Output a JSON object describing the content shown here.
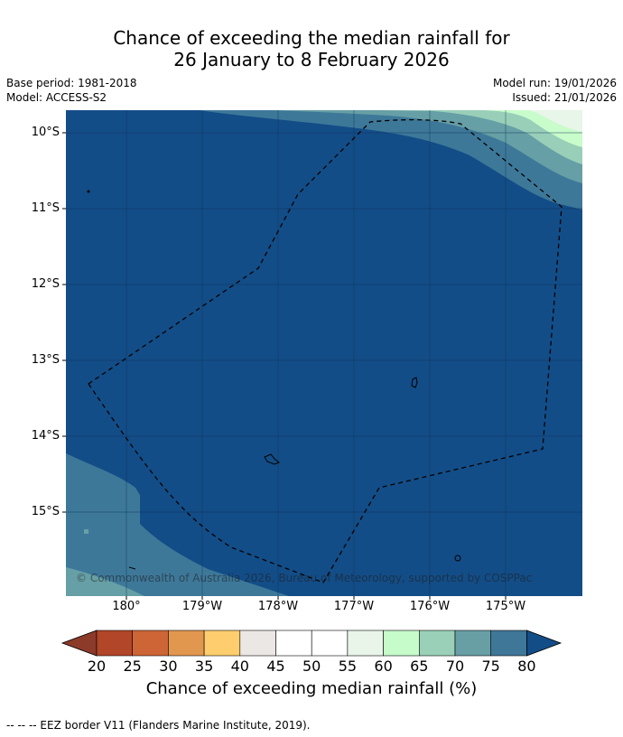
{
  "title": {
    "line1": "Chance of exceeding the median rainfall for",
    "line2": "26 January to 8 February 2026"
  },
  "meta": {
    "base_period": "Base period: 1981-2018",
    "model": "Model: ACCESS-S2",
    "model_run": "Model run: 19/01/2026",
    "issued": "Issued: 21/01/2026"
  },
  "map": {
    "lat_labels": [
      "10°S",
      "11°S",
      "12°S",
      "13°S",
      "14°S",
      "15°S"
    ],
    "lon_labels": [
      "180°",
      "179°W",
      "178°W",
      "177°W",
      "176°W",
      "175°W"
    ],
    "copyright": "© Commonwealth of Australia 2026, Bureau of Meteorology, supported by COSPPac",
    "colors": {
      "c80": "#134d87",
      "c75": "#3e7899",
      "c70": "#669fa5",
      "c65": "#99cfb9",
      "c60": "#c8fccb",
      "c55": "#e8f5e9"
    }
  },
  "colorbar": {
    "ticks": [
      "20",
      "25",
      "30",
      "35",
      "40",
      "45",
      "50",
      "55",
      "60",
      "65",
      "70",
      "75",
      "80"
    ],
    "label": "Chance of exceeding median rainfall (%)",
    "colors": [
      "#b24628",
      "#cd6536",
      "#e2974f",
      "#fece6e",
      "#ebe7e4",
      "#ffffff",
      "#ffffff",
      "#eaf5ea",
      "#c6fbca",
      "#9ad0b8",
      "#689fa5",
      "#3f7799"
    ],
    "under_color": "#8c3a2a",
    "over_color": "#134d87"
  },
  "footer": "--  --  -- EEZ border V11 (Flanders Marine Institute, 2019)."
}
